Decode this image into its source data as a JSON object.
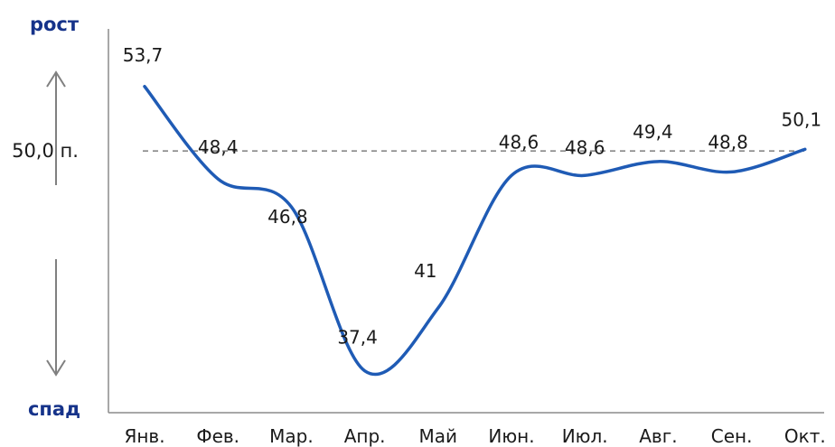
{
  "chart_data": {
    "type": "line",
    "title": "",
    "xlabel": "",
    "ylabel": "",
    "categories": [
      "Янв.",
      "Фев.",
      "Мар.",
      "Апр.",
      "Май",
      "Июн.",
      "Июл.",
      "Авг.",
      "Сен.",
      "Окт."
    ],
    "series": [
      {
        "values": [
          53.7,
          48.4,
          46.8,
          37.4,
          41,
          48.6,
          48.6,
          49.4,
          48.8,
          50.1
        ],
        "labels": [
          "53,7",
          "48,4",
          "46,8",
          "37,4",
          "41",
          "48,6",
          "48,6",
          "49,4",
          "48,8",
          "50,1"
        ]
      }
    ],
    "reference_line": {
      "value": 50,
      "label": "50,0 п.",
      "style": "dashed"
    },
    "ylim": [
      35,
      57
    ],
    "smooth": true,
    "grid": false,
    "legend": "none"
  },
  "annotations": {
    "growth": "рост",
    "decline": "спад"
  },
  "colors": {
    "line": "#1f5bb5",
    "accent_text": "#16338a",
    "reference": "#888888",
    "axis": "#8c8c8c",
    "arrow": "#808080"
  }
}
